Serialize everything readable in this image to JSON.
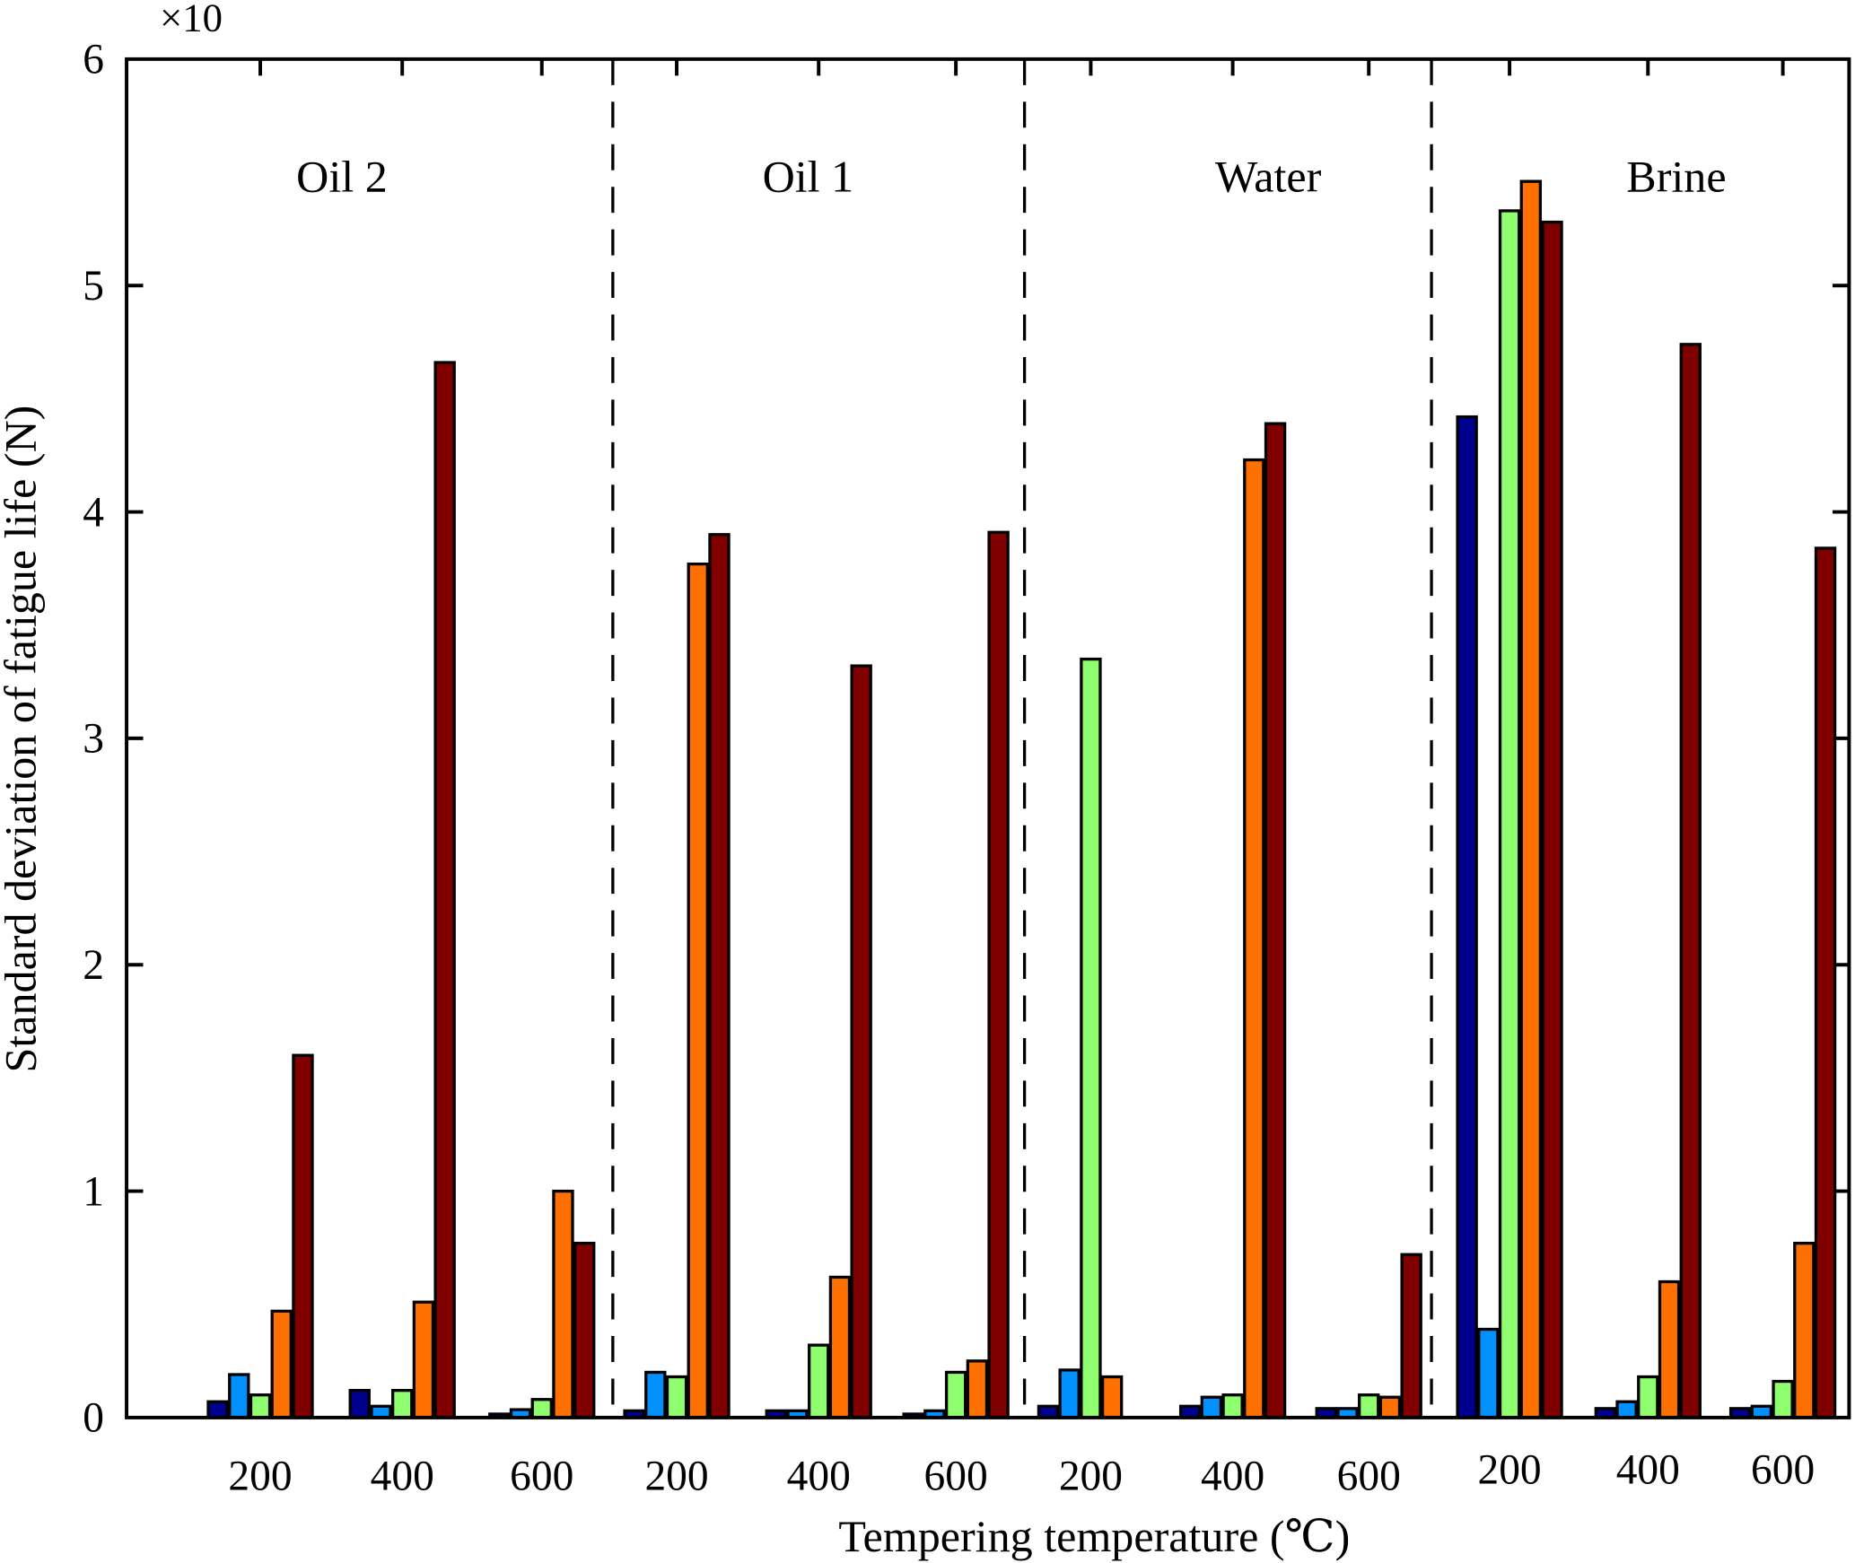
{
  "chart_data": {
    "type": "bar",
    "xlabel": "Tempering temperature (℃)",
    "ylabel": "Standard deviation of fatigue life (N)",
    "y_multiplier": "×10",
    "ylim": [
      0,
      6
    ],
    "yticks": [
      "0",
      "1",
      "2",
      "3",
      "4",
      "5",
      "6"
    ],
    "grid": false,
    "colors": [
      "#00008f",
      "#0090ff",
      "#8fff70",
      "#ff7000",
      "#800000"
    ],
    "groups": [
      {
        "name": "Oil 2",
        "categories": [
          "200",
          "400",
          "600"
        ],
        "values": [
          [
            0.07,
            0.19,
            0.1,
            0.47,
            1.6
          ],
          [
            0.12,
            0.05,
            0.12,
            0.51,
            4.66
          ],
          [
            0.015,
            0.035,
            0.08,
            1.0,
            0.77
          ]
        ]
      },
      {
        "name": "Oil 1",
        "categories": [
          "200",
          "400",
          "600"
        ],
        "values": [
          [
            0.03,
            0.2,
            0.18,
            3.77,
            3.9
          ],
          [
            0.03,
            0.03,
            0.32,
            0.62,
            3.32
          ],
          [
            0.01,
            0.03,
            0.2,
            0.25,
            3.91
          ]
        ]
      },
      {
        "name": "Water",
        "categories": [
          "200",
          "400",
          "600"
        ],
        "values": [
          [
            0.05,
            0.21,
            3.35,
            0.18,
            0
          ],
          [
            0.05,
            0.09,
            0.1,
            4.23,
            4.39
          ],
          [
            0.04,
            0.04,
            0.1,
            0.09,
            0.72
          ]
        ]
      },
      {
        "name": "Brine",
        "categories": [
          "200",
          "400",
          "600"
        ],
        "values": [
          [
            4.42,
            0.39,
            5.33,
            5.46,
            5.28
          ],
          [
            0.04,
            0.07,
            0.18,
            0.6,
            4.74
          ],
          [
            0.04,
            0.05,
            0.16,
            0.77,
            3.84
          ]
        ]
      }
    ]
  }
}
